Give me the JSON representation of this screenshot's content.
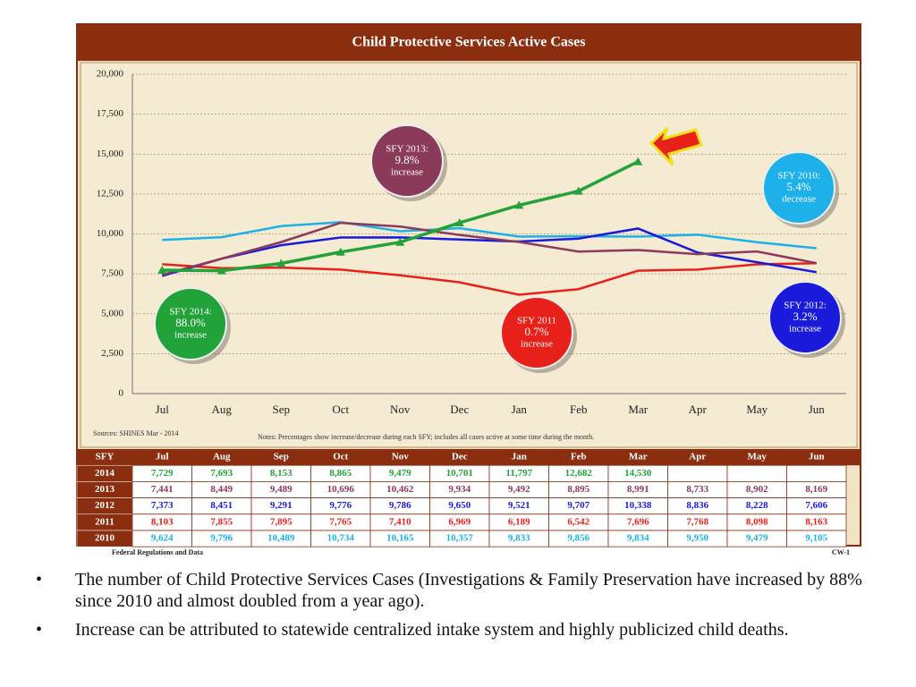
{
  "chart_data": {
    "type": "line",
    "title": "Child Protective Services Active Cases",
    "categories": [
      "Jul",
      "Aug",
      "Sep",
      "Oct",
      "Nov",
      "Dec",
      "Jan",
      "Feb",
      "Mar",
      "Apr",
      "May",
      "Jun"
    ],
    "series": [
      {
        "name": "2014",
        "color": "#22a33a",
        "marker": "triangle",
        "values": [
          7729,
          7693,
          8153,
          8865,
          9479,
          10701,
          11797,
          12682,
          14530,
          null,
          null,
          null
        ],
        "value_labels": [
          "7,729",
          "7,693",
          "8,153",
          "8,865",
          "9,479",
          "10,701",
          "11,797",
          "12,682",
          "14,530",
          null,
          null,
          null
        ]
      },
      {
        "name": "2013",
        "color": "#8b3a5a",
        "values": [
          7441,
          8449,
          9489,
          10696,
          10462,
          9934,
          9492,
          8895,
          8991,
          8733,
          8902,
          8169
        ],
        "value_labels": [
          "7,441",
          "8,449",
          "9,489",
          "10,696",
          "10,462",
          "9,934",
          "9,492",
          "8,895",
          "8,991",
          "8,733",
          "8,902",
          "8,169"
        ]
      },
      {
        "name": "2012",
        "color": "#1a1adb",
        "values": [
          7373,
          8451,
          9291,
          9776,
          9786,
          9650,
          9521,
          9707,
          10338,
          8836,
          8228,
          7606
        ],
        "value_labels": [
          "7,373",
          "8,451",
          "9,291",
          "9,776",
          "9,786",
          "9,650",
          "9,521",
          "9,707",
          "10,338",
          "8,836",
          "8,228",
          "7,606"
        ]
      },
      {
        "name": "2011",
        "color": "#e8201a",
        "values": [
          8103,
          7855,
          7895,
          7765,
          7410,
          6969,
          6189,
          6542,
          7696,
          7768,
          8098,
          8163
        ],
        "value_labels": [
          "8,103",
          "7,855",
          "7,895",
          "7,765",
          "7,410",
          "6,969",
          "6,189",
          "6,542",
          "7,696",
          "7,768",
          "8,098",
          "8,163"
        ]
      },
      {
        "name": "2010",
        "color": "#1eb0e8",
        "values": [
          9624,
          9796,
          10489,
          10734,
          10165,
          10357,
          9833,
          9856,
          9834,
          9950,
          9479,
          9105
        ],
        "value_labels": [
          "9,624",
          "9,796",
          "10,489",
          "10,734",
          "10,165",
          "10,357",
          "9,833",
          "9,856",
          "9,834",
          "9,950",
          "9,479",
          "9,105"
        ]
      }
    ],
    "ylim": [
      0,
      20000
    ],
    "yticks": [
      0,
      {
        "value": 2500,
        "label": "2,500"
      },
      {
        "value": 5000,
        "label": "5,000"
      },
      {
        "value": 7500,
        "label": "7,500"
      },
      {
        "value": 10000,
        "label": "10,000"
      },
      {
        "value": 12500,
        "label": "12,500"
      },
      {
        "value": 15000,
        "label": "15,000"
      },
      {
        "value": 17500,
        "label": "17,500"
      },
      {
        "value": 20000,
        "label": "20,000"
      }
    ],
    "grid": true,
    "annotations": [
      {
        "lines": [
          "SFY 2013:",
          "9.8%",
          "increase"
        ],
        "color": "#8b3a5a"
      },
      {
        "lines": [
          "SFY 2010:",
          "5.4%",
          "decrease"
        ],
        "color": "#1eb0e8"
      },
      {
        "lines": [
          "SFY 2012:",
          "3.2%",
          "increase"
        ],
        "color": "#1a1adb"
      },
      {
        "lines": [
          "SFY 2011",
          "0.7%",
          "increase"
        ],
        "color": "#e8201a"
      },
      {
        "lines": [
          "SFY 2014:",
          "88.0%",
          "increase"
        ],
        "color": "#22a33a"
      }
    ],
    "sources": "Sources: SHINES   Mar - 2014",
    "notes": "Notes: Percentages show increase/decrease during each SFY;  includes all cases active at some time during the month.",
    "table_header": "SFY"
  },
  "footer": "Federal Regulations and Data",
  "page_code": "CW-1",
  "bullets": [
    "The number of Child Protective Services Cases (Investigations & Family Preservation have increased by 88% since 2010 and almost doubled from a year ago).",
    "Increase can be attributed to statewide centralized intake system and highly publicized child deaths."
  ]
}
